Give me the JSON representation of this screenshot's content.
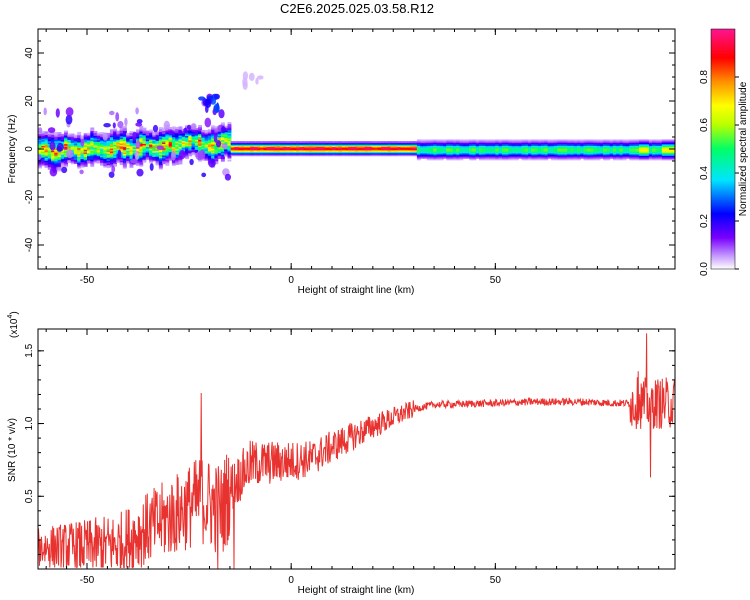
{
  "title": "C2E6.2025.025.03.58.R12",
  "chart_data": [
    {
      "type": "heatmap",
      "name": "spectrogram",
      "xlabel": "Height of straight line (km)",
      "ylabel": "Frequency (Hz)",
      "xlim": [
        -62,
        94
      ],
      "ylim": [
        -50,
        50
      ],
      "xticks": [
        -50,
        0,
        50
      ],
      "yticks": [
        -40,
        -20,
        0,
        20,
        40
      ],
      "colorbar": {
        "label": "Normalized spectral amplitude",
        "range": [
          0,
          1
        ],
        "ticks": [
          "0.0",
          "0.2",
          "0.4",
          "0.6",
          "0.8"
        ],
        "tick_values": [
          0.0,
          0.2,
          0.4,
          0.6,
          0.8
        ],
        "colors": [
          "#ffffff",
          "#c9a2ff",
          "#7a00ff",
          "#0000ff",
          "#00e5ff",
          "#00ff66",
          "#b8ff00",
          "#ffff00",
          "#ff9000",
          "#ff0000",
          "#ff1493"
        ]
      },
      "features": [
        {
          "x_range": [
            -62,
            -15
          ],
          "center_freq_hz": [
            0,
            3
          ],
          "band_halfwidth_hz": 5,
          "amplitude": "0.3-0.7 with scattered peaks"
        },
        {
          "x_range": [
            -15,
            30
          ],
          "center_freq_hz": 0,
          "band_halfwidth_hz": 2,
          "amplitude": "0.8-1.0"
        },
        {
          "x_range": [
            30,
            94
          ],
          "center_freq_hz": 0,
          "band_halfwidth_hz": 3,
          "amplitude": "0.4-0.6"
        },
        {
          "x_range": [
            -22,
            -18
          ],
          "freq_hz": [
            15,
            22
          ],
          "amplitude": "0.1-0.3"
        },
        {
          "x_range": [
            -12,
            -6
          ],
          "freq_hz": [
            26,
            31
          ],
          "amplitude": "0.05"
        }
      ]
    },
    {
      "type": "line",
      "name": "snr",
      "xlabel": "Height of straight line (km)",
      "ylabel": "SNR (10 * v/v)",
      "exponent_label": "(x10",
      "exponent_power": "4",
      "xlim": [
        -62,
        94
      ],
      "ylim": [
        0,
        1.65
      ],
      "xticks": [
        -50,
        0,
        50
      ],
      "yticks": [
        "0.5",
        "1.0",
        "1.5"
      ],
      "ytick_values": [
        0.5,
        1.0,
        1.5
      ],
      "color": "#e8322f",
      "trend": [
        {
          "x": -62,
          "y": 0.15
        },
        {
          "x": -50,
          "y": 0.15
        },
        {
          "x": -42,
          "y": 0.17
        },
        {
          "x": -35,
          "y": 0.28
        },
        {
          "x": -28,
          "y": 0.38
        },
        {
          "x": -22,
          "y": 0.48
        },
        {
          "x": -17,
          "y": 0.4
        },
        {
          "x": -15,
          "y": 0.55
        },
        {
          "x": -10,
          "y": 0.72
        },
        {
          "x": -5,
          "y": 0.73
        },
        {
          "x": 0,
          "y": 0.74
        },
        {
          "x": 5,
          "y": 0.76
        },
        {
          "x": 10,
          "y": 0.84
        },
        {
          "x": 15,
          "y": 0.91
        },
        {
          "x": 20,
          "y": 0.98
        },
        {
          "x": 25,
          "y": 1.04
        },
        {
          "x": 30,
          "y": 1.1
        },
        {
          "x": 35,
          "y": 1.13
        },
        {
          "x": 50,
          "y": 1.14
        },
        {
          "x": 60,
          "y": 1.15
        },
        {
          "x": 70,
          "y": 1.15
        },
        {
          "x": 80,
          "y": 1.14
        },
        {
          "x": 86,
          "y": 1.14
        },
        {
          "x": 94,
          "y": 1.14
        }
      ],
      "spikes": [
        {
          "x": -22,
          "y": 1.21
        },
        {
          "x": -14,
          "y": 0.0
        },
        {
          "x": -18,
          "y": 0.0
        },
        {
          "x": 87,
          "y": 1.62
        },
        {
          "x": 88,
          "y": 0.63
        },
        {
          "x": 85,
          "y": 1.36
        }
      ]
    }
  ]
}
